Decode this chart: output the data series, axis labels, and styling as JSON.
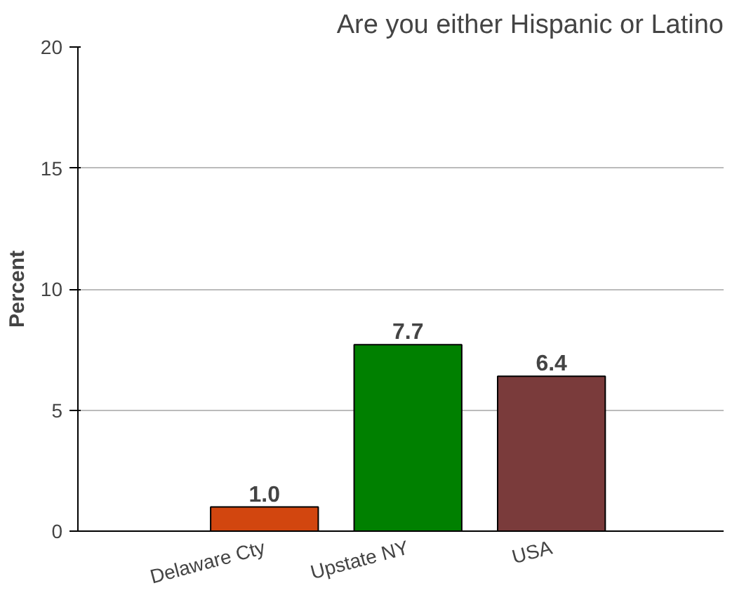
{
  "chart_data": {
    "type": "bar",
    "title": "Are you either Hispanic or Latino",
    "ylabel": "Percent",
    "categories": [
      "Delaware Cty",
      "Upstate NY",
      "USA"
    ],
    "values": [
      1.0,
      7.7,
      6.4
    ],
    "colors": [
      "#d2460f",
      "#008000",
      "#7a3b3b"
    ],
    "value_labels": [
      "1.0",
      "7.7",
      "6.4"
    ],
    "ylim": [
      0,
      20
    ],
    "yticks": [
      0,
      5,
      10,
      15,
      20
    ],
    "grid": "y"
  }
}
